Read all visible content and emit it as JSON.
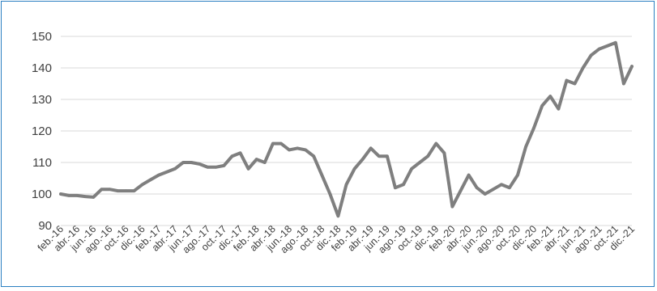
{
  "chart_data": {
    "type": "line",
    "title": "",
    "xlabel": "",
    "ylabel": "",
    "ylim": [
      90,
      150
    ],
    "yticks": [
      90,
      100,
      110,
      120,
      130,
      140,
      150
    ],
    "grid": "horizontal",
    "legend": "none",
    "line_color": "#7f7f7f",
    "x_tick_labels": [
      "feb.-16",
      "abr.-16",
      "jun.-16",
      "ago.-16",
      "oct.-16",
      "dic.-16",
      "feb.-17",
      "abr.-17",
      "jun.-17",
      "ago.-17",
      "oct.-17",
      "dic.-17",
      "feb.-18",
      "abr.-18",
      "jun.-18",
      "ago.-18",
      "oct.-18",
      "dic.-18",
      "feb.-19",
      "abr.-19",
      "jun.-19",
      "ago.-19",
      "oct.-19",
      "dic.-19",
      "feb.-20",
      "abr.-20",
      "jun.-20",
      "ago.-20",
      "oct.-20",
      "dic.-20",
      "feb.-21",
      "abr.-21",
      "jun.-21",
      "ago.-21",
      "oct.-21",
      "dic.-21"
    ],
    "series": [
      {
        "x": [
          "feb.-16",
          "mar.-16",
          "abr.-16",
          "may.-16",
          "jun.-16",
          "jul.-16",
          "ago.-16",
          "sep.-16",
          "oct.-16",
          "nov.-16",
          "dic.-16",
          "ene.-17",
          "feb.-17",
          "mar.-17",
          "abr.-17",
          "may.-17",
          "jun.-17",
          "jul.-17",
          "ago.-17",
          "sep.-17",
          "oct.-17",
          "nov.-17",
          "dic.-17",
          "ene.-18",
          "feb.-18",
          "mar.-18",
          "abr.-18",
          "may.-18",
          "jun.-18",
          "jul.-18",
          "ago.-18",
          "sep.-18",
          "oct.-18",
          "nov.-18",
          "dic.-18",
          "ene.-19",
          "feb.-19",
          "mar.-19",
          "abr.-19",
          "may.-19",
          "jun.-19",
          "jul.-19",
          "ago.-19",
          "sep.-19",
          "oct.-19",
          "nov.-19",
          "dic.-19",
          "ene.-20",
          "feb.-20",
          "mar.-20",
          "abr.-20",
          "may.-20",
          "jun.-20",
          "jul.-20",
          "ago.-20",
          "sep.-20",
          "oct.-20",
          "nov.-20",
          "dic.-20",
          "ene.-21",
          "feb.-21",
          "mar.-21",
          "abr.-21",
          "may.-21",
          "jun.-21",
          "jul.-21",
          "ago.-21",
          "sep.-21",
          "oct.-21",
          "nov.-21",
          "dic.-21"
        ],
        "values": [
          100,
          99.5,
          99.5,
          99.2,
          99,
          101.5,
          101.5,
          101,
          101,
          101,
          103,
          104.5,
          106,
          107,
          108,
          110,
          110,
          109.5,
          108.5,
          108.5,
          109,
          112,
          113,
          108,
          111,
          110,
          116,
          116,
          114,
          114.5,
          114,
          112,
          106,
          100,
          93,
          103,
          108,
          111,
          114.5,
          112,
          112,
          102,
          103,
          108,
          110,
          112,
          116,
          113,
          96,
          101,
          106,
          102,
          100,
          101.5,
          103,
          102,
          106,
          115,
          121,
          128,
          131,
          127,
          136,
          135,
          140,
          144,
          146,
          147,
          148,
          135,
          140.5
        ]
      }
    ]
  }
}
